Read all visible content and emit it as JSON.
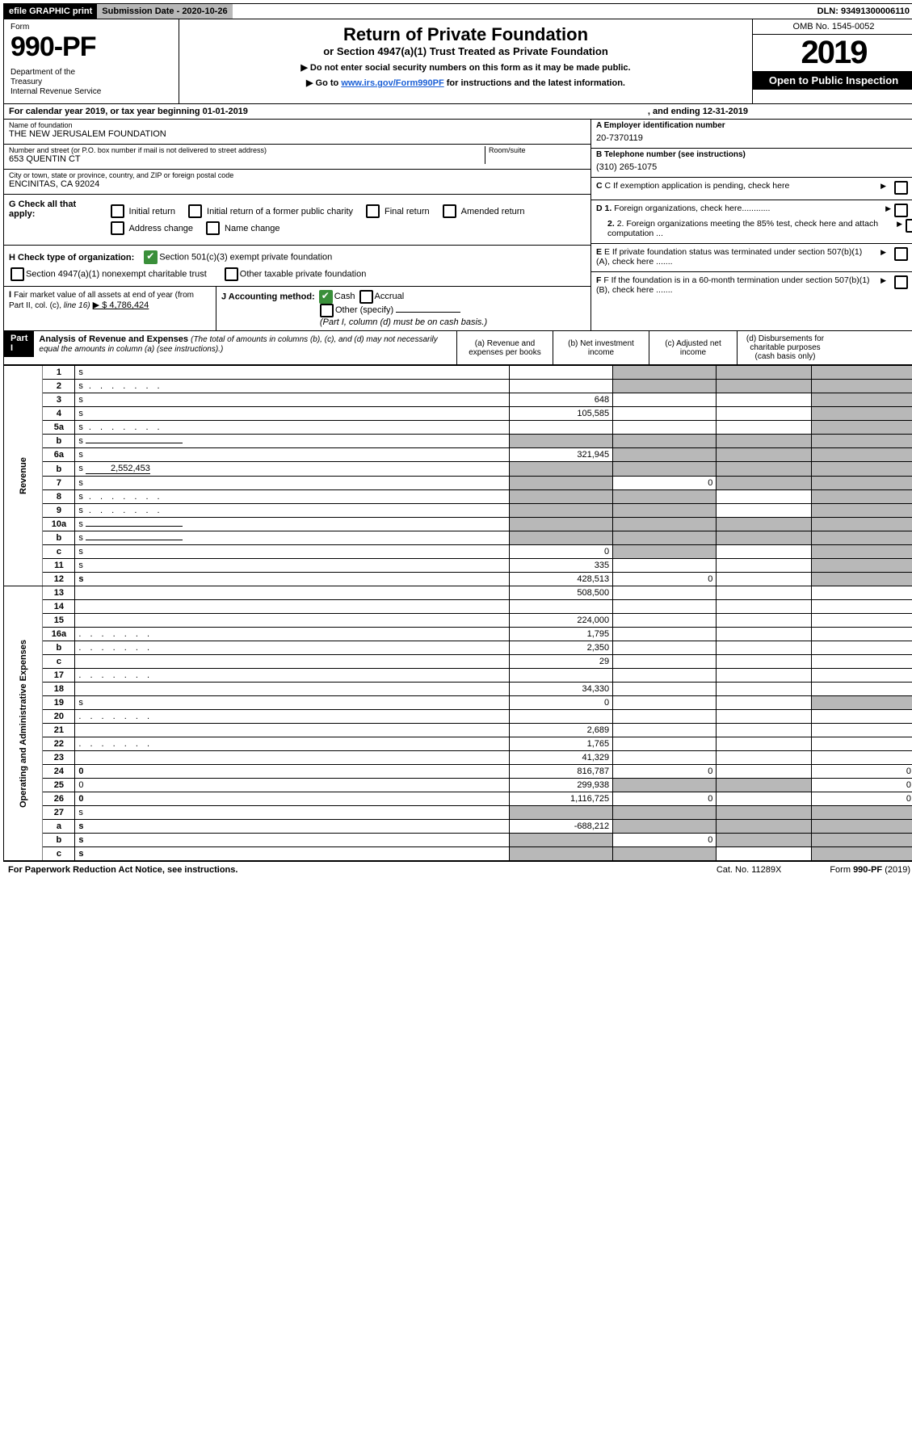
{
  "topbar": {
    "efile": "efile GRAPHIC print",
    "submission": "Submission Date - 2020-10-26",
    "dln": "DLN: 93491300006110"
  },
  "header": {
    "form_label": "Form",
    "form_number": "990-PF",
    "dept": "Department of the Treasury\nInternal Revenue Service",
    "title": "Return of Private Foundation",
    "subtitle": "or Section 4947(a)(1) Trust Treated as Private Foundation",
    "note1": "▶ Do not enter social security numbers on this form as it may be made public.",
    "note2_pre": "▶ Go to ",
    "note2_link": "www.irs.gov/Form990PF",
    "note2_post": " for instructions and the latest information.",
    "omb": "OMB No. 1545-0052",
    "year": "2019",
    "open": "Open to Public Inspection"
  },
  "cal": {
    "text": "For calendar year 2019, or tax year beginning 01-01-2019",
    "end": ", and ending 12-31-2019"
  },
  "name": {
    "label": "Name of foundation",
    "value": "THE NEW JERUSALEM FOUNDATION"
  },
  "address": {
    "label": "Number and street (or P.O. box number if mail is not delivered to street address)",
    "value": "653 QUENTIN CT",
    "room_label": "Room/suite"
  },
  "city": {
    "label": "City or town, state or province, country, and ZIP or foreign postal code",
    "value": "ENCINITAS, CA  92024"
  },
  "ein": {
    "label": "A Employer identification number",
    "value": "20-7370119"
  },
  "phone": {
    "label": "B Telephone number (see instructions)",
    "value": "(310) 265-1075"
  },
  "sectionG": {
    "label": "G Check all that apply:",
    "items": [
      "Initial return",
      "Initial return of a former public charity",
      "Final return",
      "Amended return",
      "Address change",
      "Name change"
    ]
  },
  "sectionH": {
    "label": "H Check type of organization:",
    "opt1": "Section 501(c)(3) exempt private foundation",
    "opt2": "Section 4947(a)(1) nonexempt charitable trust",
    "opt3": "Other taxable private foundation"
  },
  "sectionI": {
    "label": "I Fair market value of all assets at end of year (from Part II, col. (c), line 16)",
    "value": "▶ $  4,786,424"
  },
  "sectionJ": {
    "label": "J Accounting method:",
    "cash": "Cash",
    "accrual": "Accrual",
    "other": "Other (specify)",
    "note": "(Part I, column (d) must be on cash basis.)"
  },
  "rightC": "C If exemption application is pending, check here",
  "rightD1": "D 1. Foreign organizations, check here............",
  "rightD2": "2. Foreign organizations meeting the 85% test, check here and attach computation ...",
  "rightE": "E If private foundation status was terminated under section 507(b)(1)(A), check here .......",
  "rightF": "F If the foundation is in a 60-month termination under section 507(b)(1)(B), check here .......",
  "part1": {
    "label": "Part I",
    "title": "Analysis of Revenue and Expenses",
    "sub": "(The total of amounts in columns (b), (c), and (d) may not necessarily equal the amounts in column (a) (see instructions).)",
    "col_a": "(a) Revenue and expenses per books",
    "col_b": "(b) Net investment income",
    "col_c": "(c) Adjusted net income",
    "col_d": "(d) Disbursements for charitable purposes (cash basis only)"
  },
  "revenue_label": "Revenue",
  "expenses_label": "Operating and Administrative Expenses",
  "rows": [
    {
      "n": "1",
      "d": "s",
      "a": "",
      "b": "s",
      "c": "s"
    },
    {
      "n": "2",
      "d": "s",
      "a": "",
      "b": "s",
      "c": "s",
      "dots": true
    },
    {
      "n": "3",
      "d": "s",
      "a": "648",
      "b": "",
      "c": ""
    },
    {
      "n": "4",
      "d": "s",
      "a": "105,585",
      "b": "",
      "c": ""
    },
    {
      "n": "5a",
      "d": "s",
      "a": "",
      "b": "",
      "c": "",
      "dots": true
    },
    {
      "n": "b",
      "d": "s",
      "a": "s",
      "b": "s",
      "c": "s",
      "inline": true
    },
    {
      "n": "6a",
      "d": "s",
      "a": "321,945",
      "b": "s",
      "c": "s"
    },
    {
      "n": "b",
      "d": "s",
      "a": "s",
      "b": "s",
      "c": "s",
      "val": "2,552,453"
    },
    {
      "n": "7",
      "d": "s",
      "a": "s",
      "b": "0",
      "c": "s"
    },
    {
      "n": "8",
      "d": "s",
      "a": "s",
      "b": "s",
      "c": "",
      "dots": true
    },
    {
      "n": "9",
      "d": "s",
      "a": "s",
      "b": "s",
      "c": "",
      "dots": true
    },
    {
      "n": "10a",
      "d": "s",
      "a": "s",
      "b": "s",
      "c": "s",
      "inline": true
    },
    {
      "n": "b",
      "d": "s",
      "a": "s",
      "b": "s",
      "c": "s",
      "inline": true
    },
    {
      "n": "c",
      "d": "s",
      "a": "0",
      "b": "s",
      "c": ""
    },
    {
      "n": "11",
      "d": "s",
      "a": "335",
      "b": "",
      "c": ""
    },
    {
      "n": "12",
      "d": "s",
      "a": "428,513",
      "b": "0",
      "c": "",
      "bold": true
    },
    {
      "n": "13",
      "d": "",
      "a": "508,500",
      "b": "",
      "c": ""
    },
    {
      "n": "14",
      "d": "",
      "a": "",
      "b": "",
      "c": ""
    },
    {
      "n": "15",
      "d": "",
      "a": "224,000",
      "b": "",
      "c": ""
    },
    {
      "n": "16a",
      "d": "",
      "a": "1,795",
      "b": "",
      "c": "",
      "dots": true
    },
    {
      "n": "b",
      "d": "",
      "a": "2,350",
      "b": "",
      "c": "",
      "dots": true
    },
    {
      "n": "c",
      "d": "",
      "a": "29",
      "b": "",
      "c": ""
    },
    {
      "n": "17",
      "d": "",
      "a": "",
      "b": "",
      "c": "",
      "dots": true
    },
    {
      "n": "18",
      "d": "",
      "a": "34,330",
      "b": "",
      "c": ""
    },
    {
      "n": "19",
      "d": "s",
      "a": "0",
      "b": "",
      "c": ""
    },
    {
      "n": "20",
      "d": "",
      "a": "",
      "b": "",
      "c": "",
      "dots": true
    },
    {
      "n": "21",
      "d": "",
      "a": "2,689",
      "b": "",
      "c": ""
    },
    {
      "n": "22",
      "d": "",
      "a": "1,765",
      "b": "",
      "c": "",
      "dots": true
    },
    {
      "n": "23",
      "d": "",
      "a": "41,329",
      "b": "",
      "c": ""
    },
    {
      "n": "24",
      "d": "0",
      "a": "816,787",
      "b": "0",
      "c": "",
      "bold": true
    },
    {
      "n": "25",
      "d": "0",
      "a": "299,938",
      "b": "s",
      "c": "s"
    },
    {
      "n": "26",
      "d": "0",
      "a": "1,116,725",
      "b": "0",
      "c": "",
      "bold": true
    },
    {
      "n": "27",
      "d": "s",
      "a": "s",
      "b": "s",
      "c": "s"
    },
    {
      "n": "a",
      "d": "s",
      "a": "-688,212",
      "b": "s",
      "c": "s",
      "bold": true
    },
    {
      "n": "b",
      "d": "s",
      "a": "s",
      "b": "0",
      "c": "s",
      "bold": true
    },
    {
      "n": "c",
      "d": "s",
      "a": "s",
      "b": "s",
      "c": "",
      "bold": true
    }
  ],
  "footer": {
    "left": "For Paperwork Reduction Act Notice, see instructions.",
    "mid": "Cat. No. 11289X",
    "right": "Form 990-PF (2019)"
  },
  "colwidths": {
    "a": 110,
    "b": 110,
    "c": 100,
    "d": 110
  }
}
